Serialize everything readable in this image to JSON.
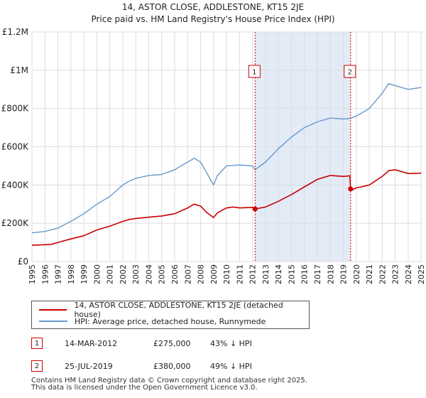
{
  "header": {
    "title": "14, ASTOR CLOSE, ADDLESTONE, KT15 2JE",
    "subtitle": "Price paid vs. HM Land Registry's House Price Index (HPI)"
  },
  "colors": {
    "price": "#cc0000",
    "hpi": "#6699cc",
    "shade": "#dce6f5",
    "grid": "#dddddd"
  },
  "chart_data": {
    "type": "line",
    "title": "14, ASTOR CLOSE, ADDLESTONE, KT15 2JE",
    "subtitle": "Price paid vs. HM Land Registry's House Price Index (HPI)",
    "xlim": [
      1995,
      2025.1
    ],
    "ylim": [
      0,
      1200000
    ],
    "y_ticks": [
      {
        "value": 0,
        "label": "£0"
      },
      {
        "value": 200000,
        "label": "£200K"
      },
      {
        "value": 400000,
        "label": "£400K"
      },
      {
        "value": 600000,
        "label": "£600K"
      },
      {
        "value": 800000,
        "label": "£800K"
      },
      {
        "value": 1000000,
        "label": "£1M"
      },
      {
        "value": 1200000,
        "label": "£1.2M"
      }
    ],
    "x_ticks": [
      "1995",
      "1996",
      "1997",
      "1998",
      "1999",
      "2000",
      "2001",
      "2002",
      "2003",
      "2004",
      "2005",
      "2006",
      "2007",
      "2008",
      "2009",
      "2010",
      "2011",
      "2012",
      "2013",
      "2014",
      "2015",
      "2016",
      "2017",
      "2018",
      "2019",
      "2020",
      "2021",
      "2022",
      "2023",
      "2024",
      "2025"
    ],
    "grid": true,
    "shaded_range": [
      2012.2,
      2019.56
    ],
    "series": [
      {
        "name": "14, ASTOR CLOSE, ADDLESTONE, KT15 2JE (detached house)",
        "color": "#cc0000",
        "x": [
          1995.0,
          1996.0,
          1996.5,
          1997.0,
          1998.0,
          1999.0,
          2000.0,
          2000.5,
          2001.0,
          2002.0,
          2002.5,
          2003.0,
          2004.0,
          2005.0,
          2006.0,
          2007.0,
          2007.5,
          2008.0,
          2008.5,
          2009.0,
          2009.3,
          2010.0,
          2010.5,
          2011.0,
          2012.0,
          2012.2,
          2013.0,
          2014.0,
          2015.0,
          2016.0,
          2017.0,
          2018.0,
          2019.0,
          2019.5,
          2019.56,
          2019.7,
          2020.0,
          2021.0,
          2022.0,
          2022.5,
          2023.0,
          2024.0,
          2025.0
        ],
        "y": [
          85000,
          88000,
          90000,
          100000,
          118000,
          135000,
          165000,
          175000,
          185000,
          210000,
          220000,
          225000,
          232000,
          238000,
          250000,
          280000,
          300000,
          290000,
          255000,
          230000,
          255000,
          280000,
          285000,
          280000,
          283000,
          275000,
          285000,
          315000,
          350000,
          390000,
          430000,
          450000,
          445000,
          448000,
          380000,
          375000,
          385000,
          400000,
          445000,
          475000,
          480000,
          460000,
          462000
        ]
      },
      {
        "name": "HPI: Average price, detached house, Runnymede",
        "color": "#6699cc",
        "x": [
          1995.0,
          1996.0,
          1997.0,
          1998.0,
          1999.0,
          2000.0,
          2001.0,
          2002.0,
          2002.5,
          2003.0,
          2004.0,
          2005.0,
          2006.0,
          2007.0,
          2007.5,
          2008.0,
          2008.5,
          2009.0,
          2009.3,
          2010.0,
          2011.0,
          2012.0,
          2012.2,
          2013.0,
          2014.0,
          2015.0,
          2016.0,
          2017.0,
          2018.0,
          2019.0,
          2019.5,
          2020.0,
          2021.0,
          2022.0,
          2022.5,
          2023.0,
          2024.0,
          2025.0
        ],
        "y": [
          150000,
          157000,
          175000,
          210000,
          250000,
          300000,
          340000,
          400000,
          420000,
          435000,
          450000,
          455000,
          480000,
          520000,
          540000,
          520000,
          460000,
          400000,
          450000,
          500000,
          505000,
          500000,
          480000,
          520000,
          590000,
          650000,
          700000,
          730000,
          750000,
          745000,
          748000,
          760000,
          800000,
          880000,
          930000,
          920000,
          900000,
          910000
        ]
      }
    ],
    "annotations": [
      {
        "label": "1",
        "x": 2012.2,
        "y": 275000
      },
      {
        "label": "2",
        "x": 2019.56,
        "y": 380000
      }
    ]
  },
  "legend": {
    "items": [
      {
        "label": "14, ASTOR CLOSE, ADDLESTONE, KT15 2JE (detached house)"
      },
      {
        "label": "HPI: Average price, detached house, Runnymede"
      }
    ]
  },
  "transactions": [
    {
      "num": "1",
      "date": "14-MAR-2012",
      "price": "£275,000",
      "hpi": "43% ↓ HPI"
    },
    {
      "num": "2",
      "date": "25-JUL-2019",
      "price": "£380,000",
      "hpi": "49% ↓ HPI"
    }
  ],
  "footer": {
    "line1": "Contains HM Land Registry data © Crown copyright and database right 2025.",
    "line2": "This data is licensed under the Open Government Licence v3.0."
  }
}
